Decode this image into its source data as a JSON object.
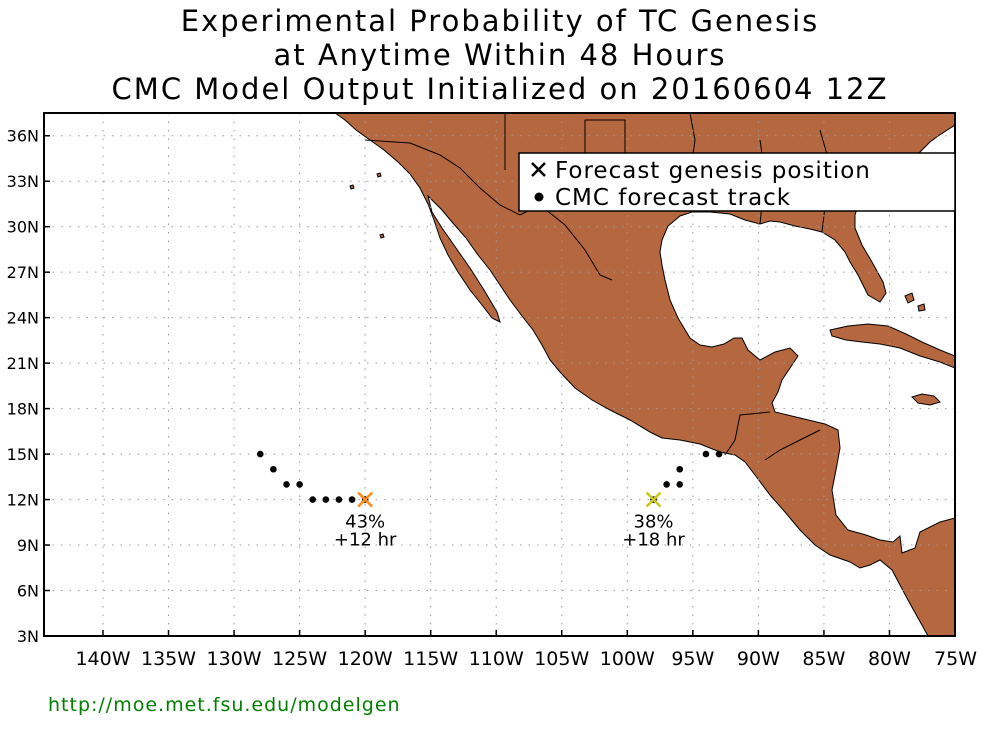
{
  "title": {
    "line1": "Experimental Probability of TC Genesis",
    "line2": "at Anytime Within 48 Hours",
    "line3": "CMC Model Output Initialized on 20160604 12Z"
  },
  "axes": {
    "lat_ticks": [
      {
        "value": 3,
        "label": "3N"
      },
      {
        "value": 6,
        "label": "6N"
      },
      {
        "value": 9,
        "label": "9N"
      },
      {
        "value": 12,
        "label": "12N"
      },
      {
        "value": 15,
        "label": "15N"
      },
      {
        "value": 18,
        "label": "18N"
      },
      {
        "value": 21,
        "label": "21N"
      },
      {
        "value": 24,
        "label": "24N"
      },
      {
        "value": 27,
        "label": "27N"
      },
      {
        "value": 30,
        "label": "30N"
      },
      {
        "value": 33,
        "label": "33N"
      },
      {
        "value": 36,
        "label": "36N"
      }
    ],
    "lon_ticks": [
      {
        "value": -140,
        "label": "140W"
      },
      {
        "value": -135,
        "label": "135W"
      },
      {
        "value": -130,
        "label": "130W"
      },
      {
        "value": -125,
        "label": "125W"
      },
      {
        "value": -120,
        "label": "120W"
      },
      {
        "value": -115,
        "label": "115W"
      },
      {
        "value": -110,
        "label": "110W"
      },
      {
        "value": -105,
        "label": "105W"
      },
      {
        "value": -100,
        "label": "100W"
      },
      {
        "value": -95,
        "label": "95W"
      },
      {
        "value": -90,
        "label": "90W"
      },
      {
        "value": -85,
        "label": "85W"
      },
      {
        "value": -80,
        "label": "80W"
      },
      {
        "value": -75,
        "label": "75W"
      }
    ],
    "lon_range": [
      -144.5,
      -75
    ],
    "lat_range": [
      3,
      37.5
    ],
    "grid": true
  },
  "legend": {
    "genesis_label": "Forecast genesis position",
    "track_label": "CMC forecast track",
    "placement": "top-right"
  },
  "systems": [
    {
      "name": "east-pacific-west",
      "genesis": {
        "lon": -120,
        "lat": 12
      },
      "probability": "43%",
      "lead_time": "+12 hr",
      "marker_color": "#ff8c1a",
      "track": [
        {
          "lon": -128,
          "lat": 15
        },
        {
          "lon": -127,
          "lat": 14
        },
        {
          "lon": -126,
          "lat": 13
        },
        {
          "lon": -125,
          "lat": 13
        },
        {
          "lon": -124,
          "lat": 12
        },
        {
          "lon": -123,
          "lat": 12
        },
        {
          "lon": -122,
          "lat": 12
        },
        {
          "lon": -121,
          "lat": 12
        },
        {
          "lon": -120,
          "lat": 12
        }
      ]
    },
    {
      "name": "east-pacific-east",
      "genesis": {
        "lon": -98,
        "lat": 12
      },
      "probability": "38%",
      "lead_time": "+18 hr",
      "marker_color": "#c8c81e",
      "track": [
        {
          "lon": -98,
          "lat": 12
        },
        {
          "lon": -97,
          "lat": 13
        },
        {
          "lon": -96,
          "lat": 13
        },
        {
          "lon": -96,
          "lat": 14
        },
        {
          "lon": -94,
          "lat": 15
        },
        {
          "lon": -93,
          "lat": 15
        }
      ]
    }
  ],
  "colors": {
    "land": "#b5673f",
    "ocean": "#ffffff",
    "grid": "#9a9a9a",
    "url": "#008000"
  },
  "footer_url": "http://moe.met.fsu.edu/modelgen"
}
